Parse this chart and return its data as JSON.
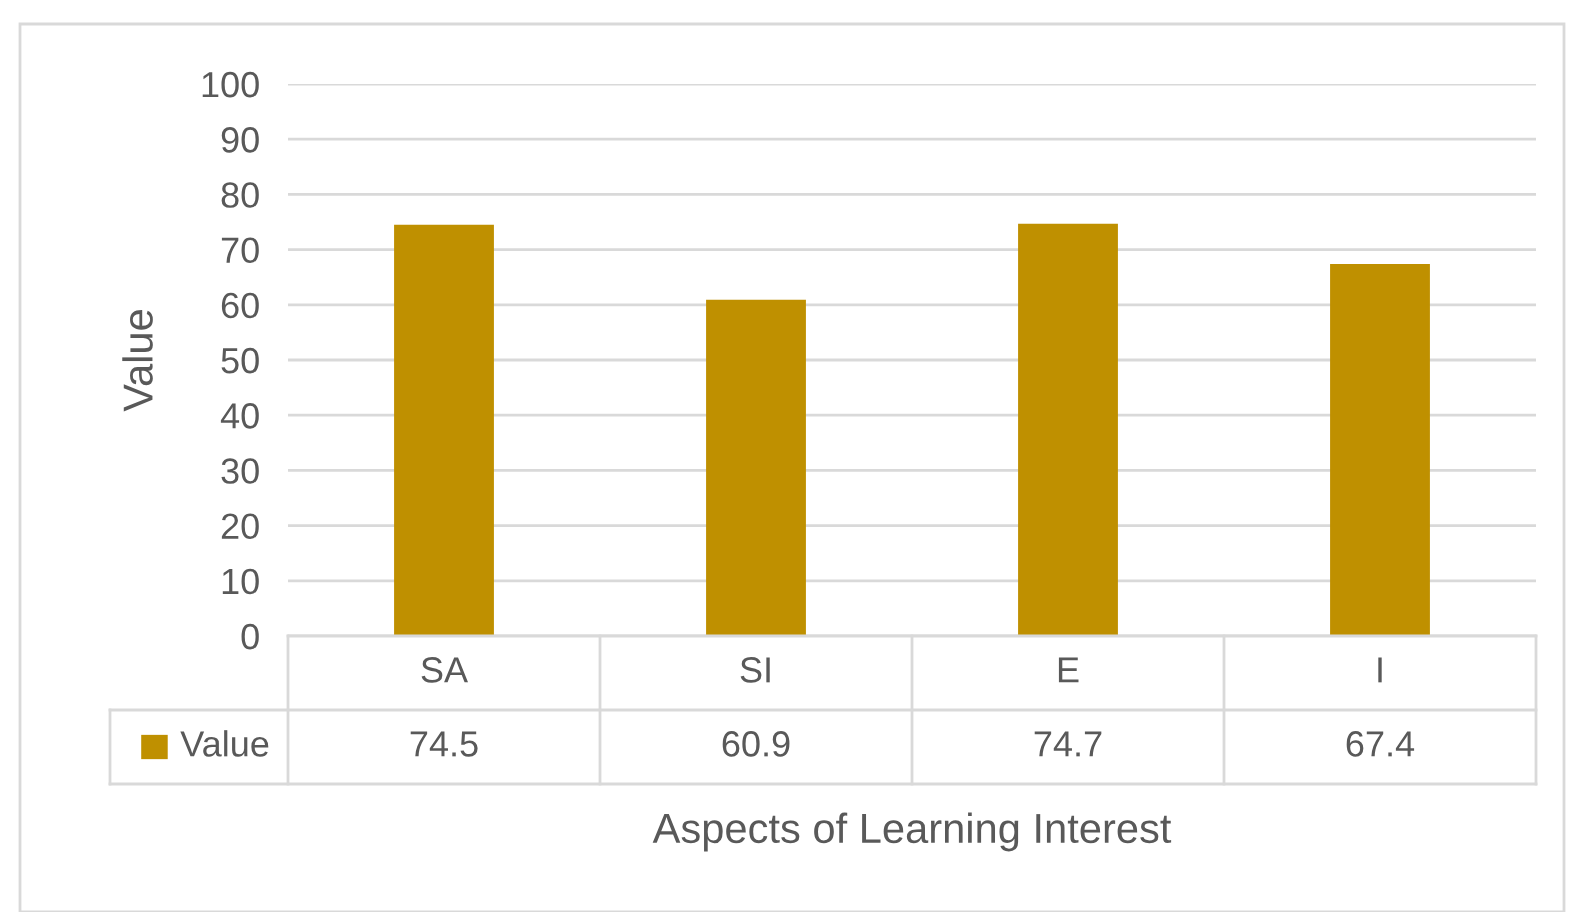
{
  "chart_data": {
    "type": "bar",
    "xlabel": "Aspects of Learning Interest",
    "ylabel": "Value",
    "categories": [
      "SA",
      "SI",
      "E",
      "I"
    ],
    "series": [
      {
        "name": "Value",
        "color": "#bf9000",
        "values": [
          74.5,
          60.9,
          74.7,
          67.4
        ]
      }
    ],
    "ylim": [
      0,
      100
    ],
    "yticks": [
      0,
      10,
      20,
      30,
      40,
      50,
      60,
      70,
      80,
      90,
      100
    ],
    "grid": "y",
    "data_labels": true
  }
}
